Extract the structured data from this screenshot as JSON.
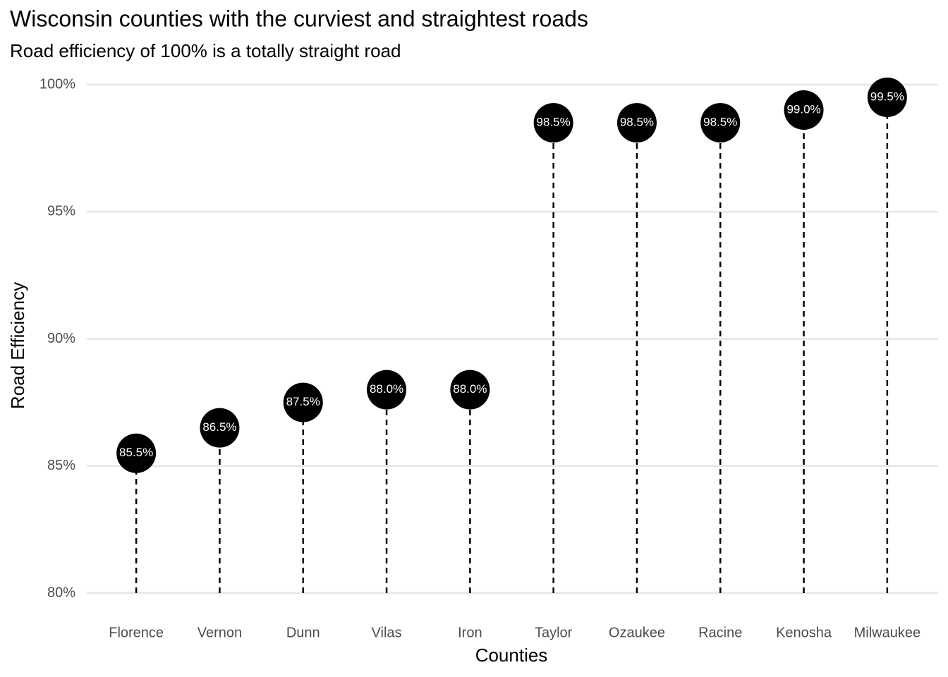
{
  "chart_data": {
    "type": "lollipop",
    "title": "Wisconsin counties with the curviest and straightest roads",
    "subtitle": "Road efficiency of 100% is a totally straight road",
    "x_label": "Counties",
    "y_label": "Road Efficiency",
    "categories": [
      "Florence",
      "Vernon",
      "Dunn",
      "Vilas",
      "Iron",
      "Taylor",
      "Ozaukee",
      "Racine",
      "Kenosha",
      "Milwaukee"
    ],
    "values": [
      85.5,
      86.5,
      87.5,
      88.0,
      88.0,
      98.5,
      98.5,
      98.5,
      99.0,
      99.5
    ],
    "value_labels": [
      "85.5%",
      "86.5%",
      "87.5%",
      "88.0%",
      "88.0%",
      "98.5%",
      "98.5%",
      "98.5%",
      "99.0%",
      "99.5%"
    ],
    "color": "#000000",
    "ylim": [
      80,
      100
    ],
    "yticks": [
      {
        "value": 80,
        "label": "80%"
      },
      {
        "value": 85,
        "label": "85%"
      },
      {
        "value": 90,
        "label": "90%"
      },
      {
        "value": 95,
        "label": "95%"
      },
      {
        "value": 100,
        "label": "100%"
      }
    ],
    "grid": true
  }
}
